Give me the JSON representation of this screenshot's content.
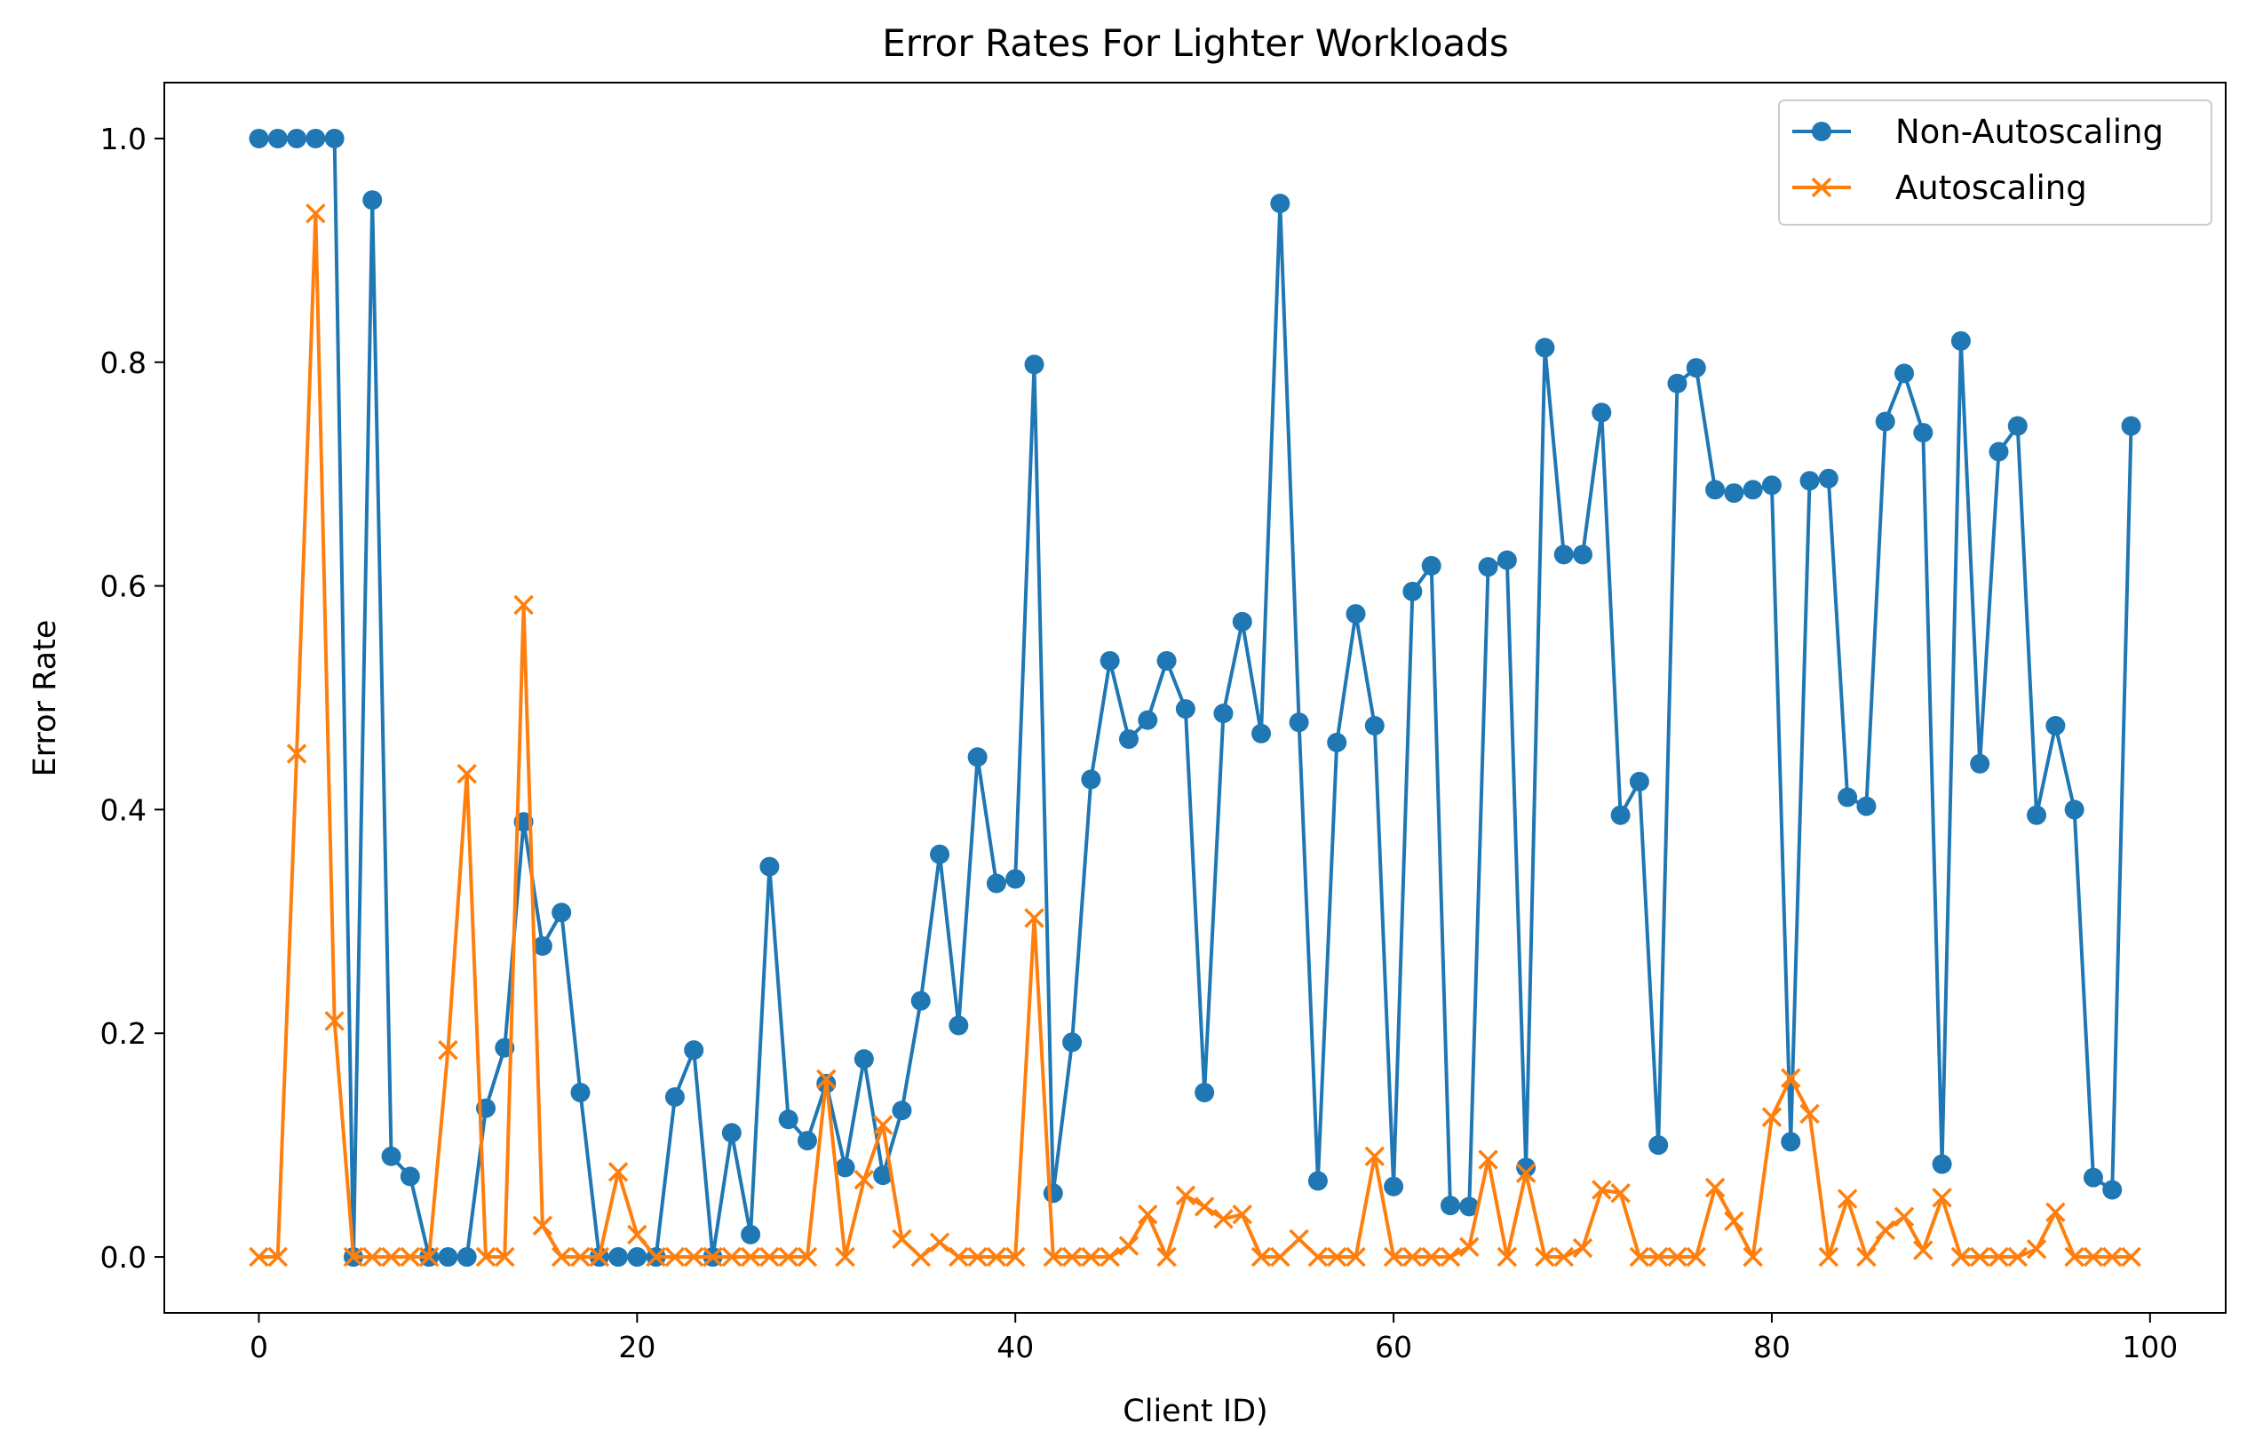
{
  "chart_data": {
    "type": "line",
    "title": "Error Rates For Lighter Workloads",
    "xlabel": "Client ID)",
    "ylabel": "Error Rate",
    "xlim": [
      -5,
      104
    ],
    "ylim": [
      -0.05,
      1.05
    ],
    "xticks": [
      0,
      20,
      40,
      60,
      80,
      100
    ],
    "xtick_labels": [
      "0",
      "20",
      "40",
      "60",
      "80",
      "100"
    ],
    "yticks": [
      0.0,
      0.2,
      0.4,
      0.6,
      0.8,
      1.0
    ],
    "ytick_labels": [
      "0.0",
      "0.2",
      "0.4",
      "0.6",
      "0.8",
      "1.0"
    ],
    "grid": false,
    "legend_position": "top-right",
    "x": [
      0,
      1,
      2,
      3,
      4,
      5,
      6,
      7,
      8,
      9,
      10,
      11,
      12,
      13,
      14,
      15,
      16,
      17,
      18,
      19,
      20,
      21,
      22,
      23,
      24,
      25,
      26,
      27,
      28,
      29,
      30,
      31,
      32,
      33,
      34,
      35,
      36,
      37,
      38,
      39,
      40,
      41,
      42,
      43,
      44,
      45,
      46,
      47,
      48,
      49,
      50,
      51,
      52,
      53,
      54,
      55,
      56,
      57,
      58,
      59,
      60,
      61,
      62,
      63,
      64,
      65,
      66,
      67,
      68,
      69,
      70,
      71,
      72,
      73,
      74,
      75,
      76,
      77,
      78,
      79,
      80,
      81,
      82,
      83,
      84,
      85,
      86,
      87,
      88,
      89,
      90,
      91,
      92,
      93,
      94,
      95,
      96,
      97,
      98,
      99
    ],
    "series": [
      {
        "name": "Non-Autoscaling",
        "color": "#1f77b4",
        "marker": "circle",
        "values": [
          1.0,
          1.0,
          1.0,
          1.0,
          1.0,
          0.0,
          0.945,
          0.09,
          0.072,
          0.0,
          0.0,
          0.0,
          0.133,
          0.187,
          0.389,
          0.278,
          0.308,
          0.147,
          0.0,
          0.0,
          0.0,
          0.0,
          0.143,
          0.185,
          0.0,
          0.111,
          0.02,
          0.349,
          0.123,
          0.104,
          0.155,
          0.08,
          0.177,
          0.073,
          0.131,
          0.229,
          0.36,
          0.207,
          0.447,
          0.334,
          0.338,
          0.798,
          0.057,
          0.192,
          0.427,
          0.533,
          0.463,
          0.48,
          0.533,
          0.49,
          0.147,
          0.486,
          0.568,
          0.468,
          0.942,
          0.478,
          0.068,
          0.46,
          0.575,
          0.475,
          0.063,
          0.595,
          0.618,
          0.046,
          0.045,
          0.617,
          0.623,
          0.08,
          0.813,
          0.628,
          0.628,
          0.755,
          0.395,
          0.425,
          0.1,
          0.781,
          0.795,
          0.686,
          0.683,
          0.686,
          0.69,
          0.103,
          0.694,
          0.696,
          0.411,
          0.403,
          0.747,
          0.79,
          0.737,
          0.083,
          0.819,
          0.441,
          0.72,
          0.743,
          0.395,
          0.475,
          0.4,
          0.071,
          0.06,
          0.743
        ]
      },
      {
        "name": "Autoscaling",
        "color": "#ff7f0e",
        "marker": "x",
        "values": [
          0.0,
          0.0,
          0.45,
          0.933,
          0.211,
          0.0,
          0.0,
          0.0,
          0.0,
          0.0,
          0.185,
          0.432,
          0.0,
          0.0,
          0.583,
          0.028,
          0.0,
          0.0,
          0.0,
          0.076,
          0.02,
          0.0,
          0.0,
          0.0,
          0.0,
          0.0,
          0.0,
          0.0,
          0.0,
          0.0,
          0.159,
          0.0,
          0.069,
          0.118,
          0.016,
          0.0,
          0.013,
          0.0,
          0.0,
          0.0,
          0.0,
          0.303,
          0.0,
          0.0,
          0.0,
          0.0,
          0.01,
          0.038,
          0.0,
          0.055,
          0.045,
          0.034,
          0.038,
          0.0,
          0.0,
          0.016,
          0.0,
          0.0,
          0.0,
          0.09,
          0.0,
          0.0,
          0.0,
          0.0,
          0.009,
          0.087,
          0.0,
          0.075,
          0.0,
          0.0,
          0.008,
          0.06,
          0.057,
          0.0,
          0.0,
          0.0,
          0.0,
          0.062,
          0.032,
          0.0,
          0.125,
          0.16,
          0.128,
          0.0,
          0.052,
          0.0,
          0.024,
          0.036,
          0.006,
          0.053,
          0.0,
          0.0,
          0.0,
          0.0,
          0.007,
          0.04,
          0.0,
          0.0,
          0.0,
          0.0
        ]
      }
    ]
  }
}
